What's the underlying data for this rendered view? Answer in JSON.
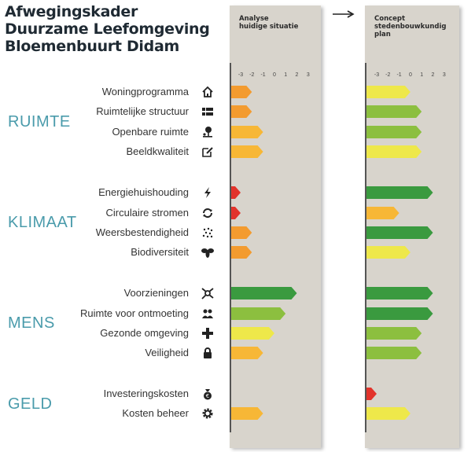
{
  "title": {
    "line1": "Afwegingskader",
    "line2": "Duurzame Leefomgeving",
    "line3": "Bloemenbuurt Didam"
  },
  "panels": [
    {
      "line1": "Analyse",
      "line2": "huidige situatie"
    },
    {
      "line1": "Concept",
      "line2": "stedenbouwkundig",
      "line3": "plan"
    }
  ],
  "categories": [
    "RUIMTE",
    "KLIMAAT",
    "MENS",
    "GELD"
  ],
  "icons": [
    "house-icon",
    "grid-icon",
    "tree-icon",
    "pencil-square-icon",
    "lightning-icon",
    "recycle-icon",
    "rain-icon",
    "bee-icon",
    "network-icon",
    "people-icon",
    "cross-icon",
    "lock-icon",
    "money-bag-icon",
    "gear-icon"
  ],
  "colors": {
    "dark_green": "#3a9a3f",
    "light_green": "#8cbf3f",
    "yellow": "#eee84a",
    "orange_yellow": "#f7b736",
    "orange": "#f39b2f",
    "red": "#e2332b"
  },
  "chart_data": {
    "type": "bar",
    "title": "Afwegingskader Duurzame Leefomgeving Bloemenbuurt Didam",
    "xlim": [
      -3,
      3
    ],
    "ticks": [
      "-3",
      "-2",
      "-1",
      "0",
      "1",
      "2",
      "3"
    ],
    "categories": [
      "Woningprogramma",
      "Ruimtelijke structuur",
      "Openbare ruimte",
      "Beeldkwaliteit",
      "Energiehuishouding",
      "Circulaire stromen",
      "Weersbestendigheid",
      "Biodiversiteit",
      "Voorzieningen",
      "Ruimte voor ontmoeting",
      "Gezonde omgeving",
      "Veiligheid",
      "Investeringskosten",
      "Kosten beheer"
    ],
    "groups": [
      "RUIMTE",
      "RUIMTE",
      "RUIMTE",
      "RUIMTE",
      "KLIMAAT",
      "KLIMAAT",
      "KLIMAAT",
      "KLIMAAT",
      "MENS",
      "MENS",
      "MENS",
      "MENS",
      "GELD",
      "GELD"
    ],
    "series": [
      {
        "name": "Analyse huidige situatie",
        "values": [
          -2,
          -2,
          -1,
          -1,
          -3,
          -3,
          -2,
          -2,
          2,
          1,
          0,
          -1,
          null,
          -1
        ],
        "colors": [
          "#f39b2f",
          "#f39b2f",
          "#f7b736",
          "#f7b736",
          "#e2332b",
          "#e2332b",
          "#f39b2f",
          "#f39b2f",
          "#3a9a3f",
          "#8cbf3f",
          "#eee84a",
          "#f7b736",
          null,
          "#f7b736"
        ]
      },
      {
        "name": "Concept stedenbouwkundig plan",
        "values": [
          0,
          1,
          1,
          1,
          2,
          -1,
          2,
          0,
          2,
          2,
          1,
          1,
          -3,
          0
        ],
        "colors": [
          "#eee84a",
          "#8cbf3f",
          "#8cbf3f",
          "#eee84a",
          "#3a9a3f",
          "#f7b736",
          "#3a9a3f",
          "#eee84a",
          "#3a9a3f",
          "#3a9a3f",
          "#8cbf3f",
          "#8cbf3f",
          "#e2332b",
          "#eee84a"
        ]
      }
    ]
  }
}
